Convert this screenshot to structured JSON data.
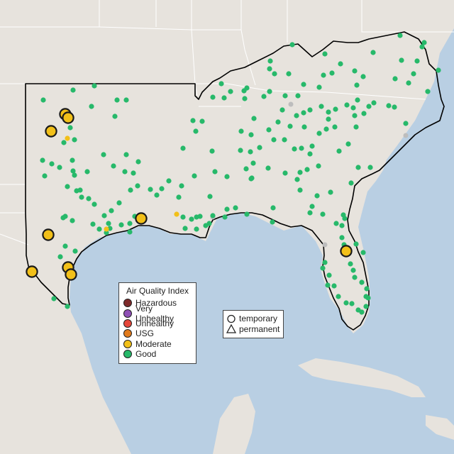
{
  "map": {
    "colors": {
      "water": "#b9cfe3",
      "land": "#e7e3dd",
      "border": "#ffffff",
      "region_outline": "#000000"
    }
  },
  "legend_aqi": {
    "title": "Air Quality Index",
    "items": [
      {
        "label": "Hazardous",
        "color": "#7e2a2a"
      },
      {
        "label": "Very Unhealthy",
        "color": "#8e4fb5"
      },
      {
        "label": "Unhealthy",
        "color": "#e5463a"
      },
      {
        "label": "USG",
        "color": "#e07a1c"
      },
      {
        "label": "Moderate",
        "color": "#f2c019"
      },
      {
        "label": "Good",
        "color": "#27b96a"
      }
    ]
  },
  "legend_type": {
    "items": [
      {
        "label": "temporary",
        "icon": "circle-icon"
      },
      {
        "label": "permanent",
        "icon": "triangle-icon"
      }
    ]
  }
}
